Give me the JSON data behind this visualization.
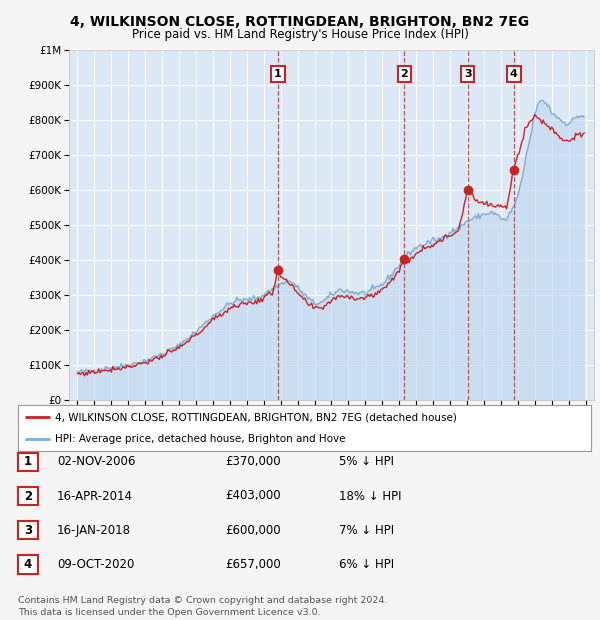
{
  "title": "4, WILKINSON CLOSE, ROTTINGDEAN, BRIGHTON, BN2 7EG",
  "subtitle": "Price paid vs. HM Land Registry's House Price Index (HPI)",
  "background_color": "#f5f5f5",
  "plot_bg_color": "#dce8f5",
  "ylim": [
    0,
    1000000
  ],
  "yticks": [
    0,
    100000,
    200000,
    300000,
    400000,
    500000,
    600000,
    700000,
    800000,
    900000,
    1000000
  ],
  "ytick_labels": [
    "£0",
    "£100K",
    "£200K",
    "£300K",
    "£400K",
    "£500K",
    "£600K",
    "£700K",
    "£800K",
    "£900K",
    "£1M"
  ],
  "hpi_color": "#7aadd4",
  "price_color": "#cc2222",
  "hpi_fill_color": "#c5d9ef",
  "legend_label_price": "4, WILKINSON CLOSE, ROTTINGDEAN, BRIGHTON, BN2 7EG (detached house)",
  "legend_label_hpi": "HPI: Average price, detached house, Brighton and Hove",
  "transactions": [
    {
      "num": 1,
      "date": "02-NOV-2006",
      "price": 370000,
      "pct": "5%",
      "x_year": 2006.84
    },
    {
      "num": 2,
      "date": "16-APR-2014",
      "price": 403000,
      "pct": "18%",
      "x_year": 2014.29
    },
    {
      "num": 3,
      "date": "16-JAN-2018",
      "price": 600000,
      "pct": "7%",
      "x_year": 2018.04
    },
    {
      "num": 4,
      "date": "09-OCT-2020",
      "price": 657000,
      "pct": "6%",
      "x_year": 2020.77
    }
  ],
  "footer": "Contains HM Land Registry data © Crown copyright and database right 2024.\nThis data is licensed under the Open Government Licence v3.0.",
  "x_min": 1994.5,
  "x_max": 2025.5,
  "xticks": [
    1995,
    1996,
    1997,
    1998,
    1999,
    2000,
    2001,
    2002,
    2003,
    2004,
    2005,
    2006,
    2007,
    2008,
    2009,
    2010,
    2011,
    2012,
    2013,
    2014,
    2015,
    2016,
    2017,
    2018,
    2019,
    2020,
    2021,
    2022,
    2023,
    2024,
    2025
  ]
}
